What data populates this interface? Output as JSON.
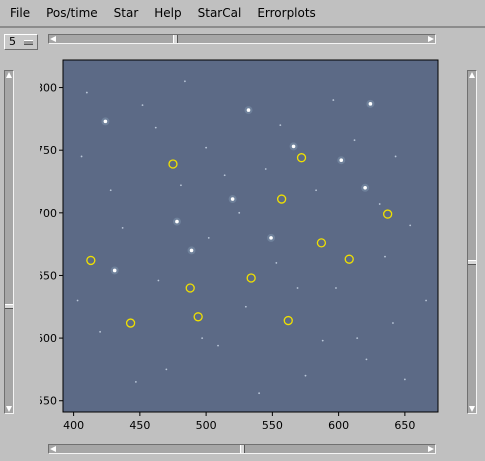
{
  "menu": [
    "File",
    "Pos/time",
    "Star",
    "Help",
    "StarCal",
    "Errorplots"
  ],
  "spinbox": {
    "value": "5"
  },
  "chart_data": {
    "type": "scatter",
    "title": "",
    "xlabel": "",
    "ylabel": "",
    "xlim": [
      392,
      675
    ],
    "ylim": [
      541,
      822
    ],
    "xticks": [
      400,
      450,
      500,
      550,
      600,
      650
    ],
    "yticks": [
      550,
      600,
      650,
      700,
      750,
      800
    ],
    "background_color": "#5c6a86",
    "marker_color": "#f0e000",
    "marked_stars": {
      "x": [
        475,
        572,
        557,
        637,
        413,
        587,
        608,
        534,
        488,
        494,
        443,
        562
      ],
      "y": [
        739,
        744,
        711,
        699,
        662,
        676,
        663,
        648,
        640,
        617,
        612,
        614
      ]
    },
    "bright_stars": {
      "x": [
        532,
        602,
        624,
        489,
        478,
        520,
        566,
        549,
        431,
        424,
        620
      ],
      "y": [
        782,
        742,
        787,
        670,
        693,
        711,
        753,
        680,
        654,
        773,
        720
      ]
    },
    "faint_stars": {
      "x": [
        410,
        452,
        462,
        481,
        500,
        514,
        525,
        545,
        583,
        612,
        631,
        643,
        654,
        403,
        420,
        437,
        464,
        497,
        530,
        553,
        588,
        598,
        621,
        641,
        447,
        470,
        509,
        540,
        575,
        614,
        650,
        428,
        484,
        556,
        596,
        635,
        406,
        666,
        502,
        569
      ],
      "y": [
        796,
        786,
        768,
        722,
        752,
        730,
        700,
        735,
        718,
        758,
        707,
        745,
        690,
        630,
        605,
        688,
        646,
        600,
        625,
        660,
        598,
        640,
        583,
        612,
        565,
        575,
        594,
        556,
        570,
        600,
        567,
        718,
        805,
        770,
        790,
        665,
        745,
        630,
        680,
        640
      ]
    }
  }
}
